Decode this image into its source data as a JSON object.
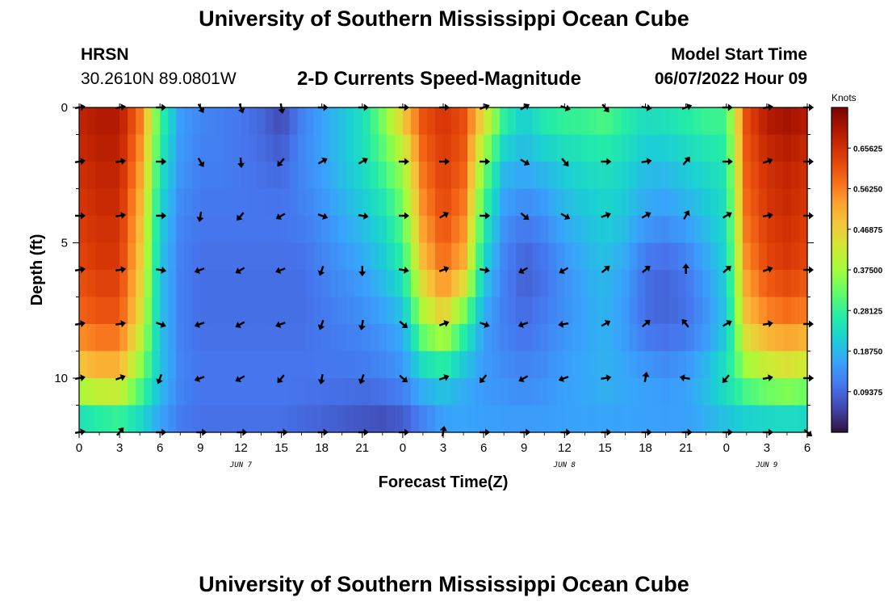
{
  "header": {
    "title": "University of Southern Mississippi Ocean Cube",
    "station": "HRSN",
    "coords": "30.2610N  89.0801W",
    "chart_title": "2-D Currents Speed-Magnitude",
    "start_label": "Model Start Time",
    "start_time": "06/07/2022 Hour 09"
  },
  "footer": {
    "title": "University of Southern Mississippi Ocean Cube"
  },
  "chart_data": {
    "type": "heatmap",
    "title": "2-D Currents Speed-Magnitude",
    "xlabel": "Forecast Time(Z)",
    "ylabel": "Depth (ft)",
    "x_ticks": [
      "0",
      "3",
      "6",
      "9",
      "12",
      "15",
      "18",
      "21",
      "0",
      "3",
      "6",
      "9",
      "12",
      "15",
      "18",
      "21",
      "0",
      "3",
      "6"
    ],
    "date_labels": [
      {
        "label": "JUN 7",
        "hour": 12
      },
      {
        "label": "JUN 8",
        "hour": 36
      },
      {
        "label": "JUN 9",
        "hour": 51
      }
    ],
    "x_range_hours": [
      0,
      54
    ],
    "y_range_ft": [
      0,
      12
    ],
    "y_ticks": [
      0,
      5,
      10
    ],
    "colorbar": {
      "units": "Knots",
      "range": [
        0,
        0.75
      ],
      "tick_labels": [
        "0.65625",
        "0.56250",
        "0.46875",
        "0.37500",
        "0.28125",
        "0.18750",
        "0.09375"
      ],
      "tick_values": [
        0.65625,
        0.5625,
        0.46875,
        0.375,
        0.28125,
        0.1875,
        0.09375
      ],
      "colors": [
        "#30123b",
        "#4145ab",
        "#4675ed",
        "#39a2fc",
        "#1bcfd4",
        "#24eca6",
        "#61fc6c",
        "#a4fc3b",
        "#d1e834",
        "#f3c63a",
        "#fe9b2d",
        "#f36315",
        "#d93806",
        "#b11901",
        "#7a0403"
      ]
    },
    "time_hours": [
      0,
      1.5,
      3,
      4.5,
      6,
      7.5,
      9,
      10.5,
      12,
      13.5,
      15,
      16.5,
      18,
      19.5,
      21,
      22.5,
      24,
      25.5,
      27,
      28.5,
      30,
      31.5,
      33,
      34.5,
      36,
      37.5,
      39,
      40.5,
      42,
      43.5,
      45,
      46.5,
      48,
      49.5,
      51,
      52.5,
      54
    ],
    "depth_ft": [
      0,
      2,
      4,
      6,
      8,
      10,
      12
    ],
    "speed_knots": [
      [
        0.68,
        0.7,
        0.7,
        0.58,
        0.3,
        0.16,
        0.13,
        0.12,
        0.11,
        0.09,
        0.05,
        0.12,
        0.16,
        0.2,
        0.24,
        0.35,
        0.5,
        0.62,
        0.65,
        0.62,
        0.48,
        0.3,
        0.22,
        0.28,
        0.3,
        0.3,
        0.32,
        0.28,
        0.25,
        0.26,
        0.28,
        0.3,
        0.3,
        0.62,
        0.7,
        0.72,
        0.7
      ],
      [
        0.66,
        0.68,
        0.68,
        0.54,
        0.26,
        0.15,
        0.12,
        0.12,
        0.11,
        0.1,
        0.09,
        0.13,
        0.16,
        0.2,
        0.24,
        0.3,
        0.38,
        0.58,
        0.64,
        0.6,
        0.35,
        0.2,
        0.18,
        0.2,
        0.22,
        0.24,
        0.25,
        0.23,
        0.2,
        0.2,
        0.22,
        0.24,
        0.26,
        0.6,
        0.66,
        0.68,
        0.66
      ],
      [
        0.64,
        0.66,
        0.66,
        0.5,
        0.22,
        0.13,
        0.11,
        0.11,
        0.11,
        0.11,
        0.11,
        0.12,
        0.14,
        0.17,
        0.2,
        0.24,
        0.32,
        0.54,
        0.62,
        0.56,
        0.28,
        0.15,
        0.12,
        0.14,
        0.18,
        0.2,
        0.22,
        0.2,
        0.16,
        0.15,
        0.17,
        0.2,
        0.24,
        0.58,
        0.64,
        0.66,
        0.64
      ],
      [
        0.62,
        0.64,
        0.64,
        0.48,
        0.2,
        0.12,
        0.1,
        0.1,
        0.1,
        0.1,
        0.1,
        0.1,
        0.12,
        0.14,
        0.16,
        0.2,
        0.26,
        0.48,
        0.58,
        0.5,
        0.22,
        0.12,
        0.08,
        0.1,
        0.14,
        0.17,
        0.19,
        0.16,
        0.1,
        0.09,
        0.11,
        0.16,
        0.22,
        0.54,
        0.62,
        0.64,
        0.62
      ],
      [
        0.58,
        0.6,
        0.6,
        0.44,
        0.2,
        0.12,
        0.1,
        0.1,
        0.1,
        0.1,
        0.1,
        0.1,
        0.11,
        0.12,
        0.13,
        0.15,
        0.18,
        0.36,
        0.44,
        0.3,
        0.16,
        0.12,
        0.1,
        0.12,
        0.14,
        0.16,
        0.18,
        0.15,
        0.1,
        0.09,
        0.1,
        0.14,
        0.2,
        0.48,
        0.54,
        0.56,
        0.55
      ],
      [
        0.45,
        0.48,
        0.48,
        0.34,
        0.2,
        0.13,
        0.11,
        0.11,
        0.11,
        0.11,
        0.11,
        0.11,
        0.11,
        0.11,
        0.11,
        0.12,
        0.14,
        0.2,
        0.22,
        0.18,
        0.15,
        0.14,
        0.13,
        0.14,
        0.16,
        0.17,
        0.18,
        0.17,
        0.16,
        0.15,
        0.16,
        0.2,
        0.26,
        0.34,
        0.38,
        0.4,
        0.38
      ],
      [
        0.18,
        0.2,
        0.22,
        0.2,
        0.15,
        0.11,
        0.1,
        0.1,
        0.1,
        0.1,
        0.1,
        0.09,
        0.08,
        0.07,
        0.06,
        0.05,
        0.06,
        0.1,
        0.14,
        0.16,
        0.16,
        0.16,
        0.16,
        0.16,
        0.16,
        0.16,
        0.16,
        0.16,
        0.16,
        0.16,
        0.16,
        0.17,
        0.18,
        0.18,
        0.18,
        0.18,
        0.18
      ]
    ],
    "vector_hours": [
      0,
      3,
      6,
      9,
      12,
      15,
      18,
      21,
      24,
      27,
      30,
      33,
      36,
      39,
      42,
      45,
      48,
      51,
      54
    ],
    "vector_depth_ft": [
      0,
      2,
      4,
      6,
      8,
      10,
      12
    ],
    "vector_direction_deg": [
      [
        80,
        80,
        90,
        150,
        160,
        170,
        90,
        90,
        90,
        90,
        70,
        60,
        110,
        140,
        100,
        70,
        90,
        80,
        90
      ],
      [
        80,
        80,
        90,
        150,
        175,
        220,
        60,
        60,
        90,
        90,
        90,
        120,
        140,
        90,
        80,
        40,
        90,
        70,
        90
      ],
      [
        90,
        80,
        90,
        190,
        220,
        240,
        110,
        100,
        90,
        60,
        90,
        130,
        120,
        70,
        60,
        30,
        60,
        80,
        90
      ],
      [
        80,
        80,
        100,
        250,
        240,
        250,
        200,
        180,
        100,
        70,
        100,
        240,
        240,
        50,
        50,
        0,
        50,
        70,
        90
      ],
      [
        80,
        80,
        110,
        250,
        240,
        250,
        200,
        190,
        130,
        70,
        110,
        250,
        260,
        60,
        50,
        320,
        60,
        80,
        90
      ],
      [
        80,
        70,
        200,
        250,
        240,
        220,
        190,
        200,
        130,
        70,
        220,
        240,
        250,
        80,
        10,
        280,
        220,
        80,
        90
      ],
      [
        80,
        40,
        90,
        90,
        90,
        90,
        90,
        90,
        90,
        10,
        90,
        90,
        90,
        90,
        90,
        90,
        90,
        90,
        130
      ]
    ]
  }
}
